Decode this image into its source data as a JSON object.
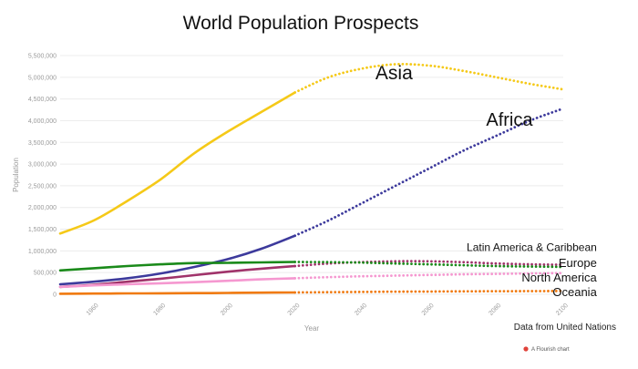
{
  "chart_data": {
    "type": "line",
    "title": "World Population Prospects",
    "xlabel": "Year",
    "ylabel": "Population",
    "source_note": "Data from United Nations",
    "credit": "A Flourish chart",
    "xlim": [
      1950,
      2100
    ],
    "ylim": [
      0,
      5500000
    ],
    "x_ticks": [
      1960,
      1980,
      2000,
      2020,
      2040,
      2060,
      2080,
      2100
    ],
    "y_ticks": [
      0,
      500000,
      1000000,
      1500000,
      2000000,
      2500000,
      3000000,
      3500000,
      4000000,
      4500000,
      5000000,
      5500000
    ],
    "y_tick_labels": [
      "0",
      "500,000",
      "1,000,000",
      "1,500,000",
      "2,000,000",
      "2,500,000",
      "3,000,000",
      "3,500,000",
      "4,000,000",
      "4,500,000",
      "5,000,000",
      "5,500,000"
    ],
    "grid": true,
    "projection_start": 2020,
    "projection_style": "dotted",
    "series": [
      {
        "name": "Asia",
        "color": "#f5c918",
        "x": [
          1950,
          1960,
          1970,
          1980,
          1990,
          2000,
          2010,
          2020,
          2030,
          2040,
          2050,
          2060,
          2070,
          2080,
          2090,
          2100
        ],
        "values": [
          1400000,
          1700000,
          2150000,
          2650000,
          3250000,
          3750000,
          4200000,
          4650000,
          5000000,
          5200000,
          5300000,
          5270000,
          5150000,
          5000000,
          4850000,
          4720000
        ]
      },
      {
        "name": "Africa",
        "color": "#3d3a9c",
        "x": [
          1950,
          1960,
          1970,
          1980,
          1990,
          2000,
          2010,
          2020,
          2030,
          2040,
          2050,
          2060,
          2070,
          2080,
          2090,
          2100
        ],
        "values": [
          230000,
          290000,
          370000,
          480000,
          630000,
          810000,
          1050000,
          1350000,
          1700000,
          2100000,
          2500000,
          2900000,
          3300000,
          3650000,
          4000000,
          4280000
        ]
      },
      {
        "name": "Latin America & Caribbean",
        "color": "#a0336a",
        "x": [
          1950,
          1960,
          1970,
          1980,
          1990,
          2000,
          2010,
          2020,
          2030,
          2040,
          2050,
          2060,
          2070,
          2080,
          2090,
          2100
        ],
        "values": [
          170000,
          220000,
          290000,
          360000,
          440000,
          520000,
          590000,
          650000,
          710000,
          740000,
          760000,
          760000,
          740000,
          710000,
          690000,
          680000
        ]
      },
      {
        "name": "Europe",
        "color": "#1a8a1a",
        "x": [
          1950,
          1960,
          1970,
          1980,
          1990,
          2000,
          2010,
          2020,
          2030,
          2040,
          2050,
          2060,
          2070,
          2080,
          2090,
          2100
        ],
        "values": [
          550000,
          600000,
          650000,
          690000,
          720000,
          725000,
          735000,
          745000,
          740000,
          730000,
          710000,
          690000,
          670000,
          650000,
          640000,
          630000
        ]
      },
      {
        "name": "North America",
        "color": "#f598d0",
        "x": [
          1950,
          1960,
          1970,
          1980,
          1990,
          2000,
          2010,
          2020,
          2030,
          2040,
          2050,
          2060,
          2070,
          2080,
          2090,
          2100
        ],
        "values": [
          170000,
          205000,
          230000,
          255000,
          280000,
          310000,
          345000,
          370000,
          395000,
          415000,
          430000,
          445000,
          460000,
          470000,
          480000,
          490000
        ]
      },
      {
        "name": "Oceania",
        "color": "#f07a10",
        "x": [
          1950,
          1960,
          1970,
          1980,
          1990,
          2000,
          2010,
          2020,
          2030,
          2040,
          2050,
          2060,
          2070,
          2080,
          2090,
          2100
        ],
        "values": [
          13000,
          16000,
          20000,
          23000,
          27000,
          31000,
          37000,
          43000,
          49000,
          55000,
          60000,
          64000,
          68000,
          71000,
          73000,
          75000
        ]
      }
    ],
    "label_placement": [
      {
        "series": "Asia",
        "size": 21,
        "anchor": "start",
        "at_x": 2044,
        "at_y": 4950000
      },
      {
        "series": "Africa",
        "size": 20,
        "anchor": "start",
        "at_x": 2077,
        "at_y": 3880000
      },
      {
        "series": "Latin America & Caribbean",
        "size": 12,
        "anchor": "end",
        "at_x": 2110,
        "at_y": 1000000
      },
      {
        "series": "Europe",
        "size": 13,
        "anchor": "end",
        "at_x": 2110,
        "at_y": 630000
      },
      {
        "series": "North America",
        "size": 13,
        "anchor": "end",
        "at_x": 2110,
        "at_y": 290000
      },
      {
        "series": "Oceania",
        "size": 13,
        "anchor": "end",
        "at_x": 2110,
        "at_y": -40000
      }
    ]
  }
}
